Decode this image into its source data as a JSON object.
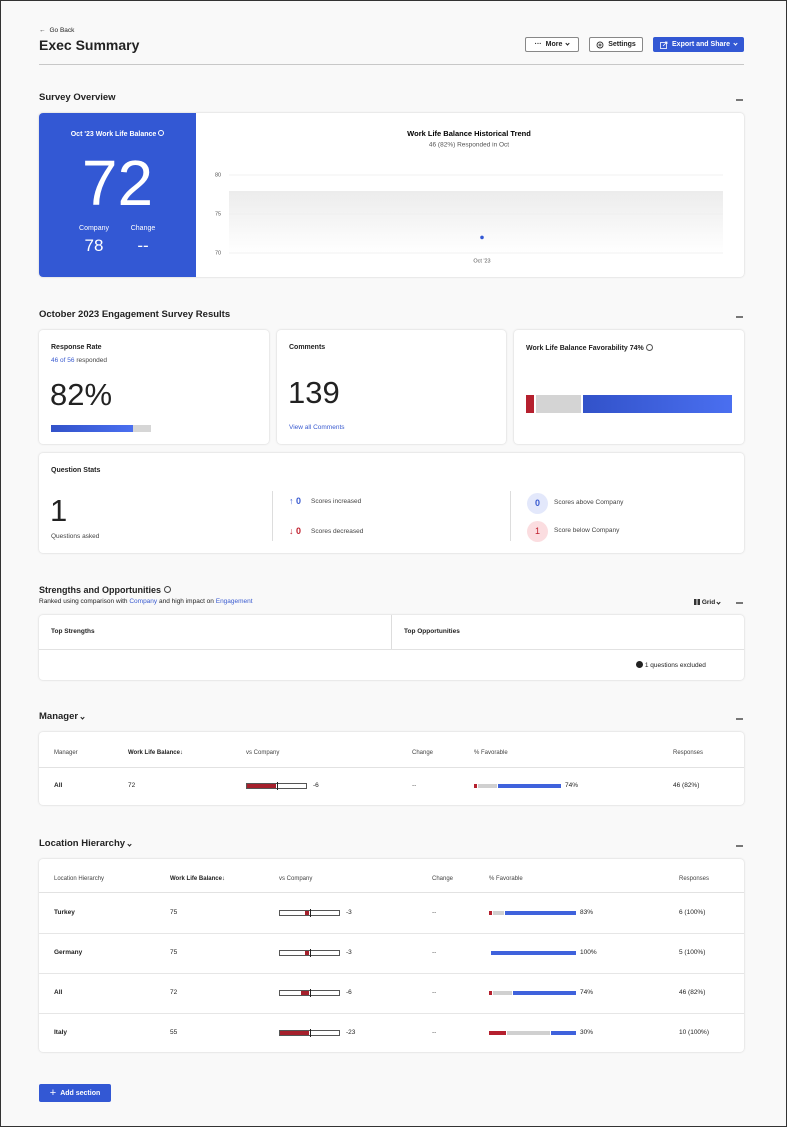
{
  "header": {
    "back": "Go Back",
    "title": "Exec Summary",
    "buttons": [
      "More",
      "Settings",
      "Export and Share"
    ]
  },
  "survey_overview": {
    "title": "Survey Overview",
    "score_card": {
      "label": "Oct '23 Work Life Balance",
      "score": 72,
      "company_label": "Company",
      "company": 78,
      "change_label": "Change",
      "change": "--"
    },
    "trend": {
      "title": "Work Life Balance Historical Trend",
      "subtitle": "46 (82%) Responded in Oct",
      "categories": [
        "Oct '23"
      ],
      "values": [
        72
      ],
      "ylim": [
        70,
        80
      ],
      "yticks": [
        80,
        75,
        70
      ]
    }
  },
  "results": {
    "title": "October 2023 Engagement Survey Results",
    "response_rate": {
      "title": "Response Rate",
      "responded_link": "46 of 56",
      "responded_text": "responded",
      "rate": {
        "value": 82,
        "label": "82%"
      }
    },
    "comments": {
      "title": "Comments",
      "count": 139,
      "link": "View all Comments"
    },
    "favorability": {
      "title": "Work Life Balance Favorability 74%",
      "unfavorable": 4,
      "neutral": 22,
      "favorable": 74
    },
    "question_stats": {
      "title": "Question Stats",
      "asked": 1,
      "asked_label": "Questions asked",
      "increased": 0,
      "increased_label": "Scores increased",
      "decreased": 0,
      "decreased_label": "Scores decreased",
      "above": 0,
      "above_label": "Scores above Company",
      "below": 1,
      "below_label": "Score below Company"
    }
  },
  "strengths": {
    "title": "Strengths and Opportunities",
    "subtitle_1": "Ranked using comparison with",
    "subtitle_link_1": "Company",
    "subtitle_2": "and high impact on",
    "subtitle_link_2": "Engagement",
    "view": "Grid",
    "col_strengths": "Top Strengths",
    "col_opportunities": "Top Opportunities",
    "excluded": "1 questions excluded"
  },
  "manager": {
    "title": "Manager",
    "columns": [
      "Manager",
      "Work Life Balance↓",
      "vs Company",
      "Change",
      "% Favorable",
      "Responses"
    ],
    "rows": [
      {
        "name": "All",
        "score": 72,
        "vs_company": -6,
        "change": "--",
        "unfavorable": 4,
        "neutral": 22,
        "favorable": {
          "value": 74,
          "label": "74%"
        },
        "responses": "46 (82%)"
      }
    ]
  },
  "location": {
    "title": "Location Hierarchy",
    "columns": [
      "Location Hierarchy",
      "Work Life Balance↓",
      "vs Company",
      "Change",
      "% Favorable",
      "Responses"
    ],
    "rows": [
      {
        "name": "Turkey",
        "score": 75,
        "vs_company": -3,
        "change": "--",
        "unfavorable": 3,
        "neutral": 14,
        "favorable": {
          "value": 83,
          "label": "83%"
        },
        "responses": "6 (100%)"
      },
      {
        "name": "Germany",
        "score": 75,
        "vs_company": -3,
        "change": "--",
        "unfavorable": 0,
        "neutral": 0,
        "favorable": {
          "value": 100,
          "label": "100%"
        },
        "responses": "5 (100%)"
      },
      {
        "name": "All",
        "score": 72,
        "vs_company": -6,
        "change": "--",
        "unfavorable": 4,
        "neutral": 22,
        "favorable": {
          "value": 74,
          "label": "74%"
        },
        "responses": "46 (82%)"
      },
      {
        "name": "Italy",
        "score": 55,
        "vs_company": -23,
        "change": "--",
        "unfavorable": 20,
        "neutral": 50,
        "favorable": {
          "value": 30,
          "label": "30%"
        },
        "responses": "10 (100%)"
      }
    ]
  },
  "add_section": "Add section"
}
